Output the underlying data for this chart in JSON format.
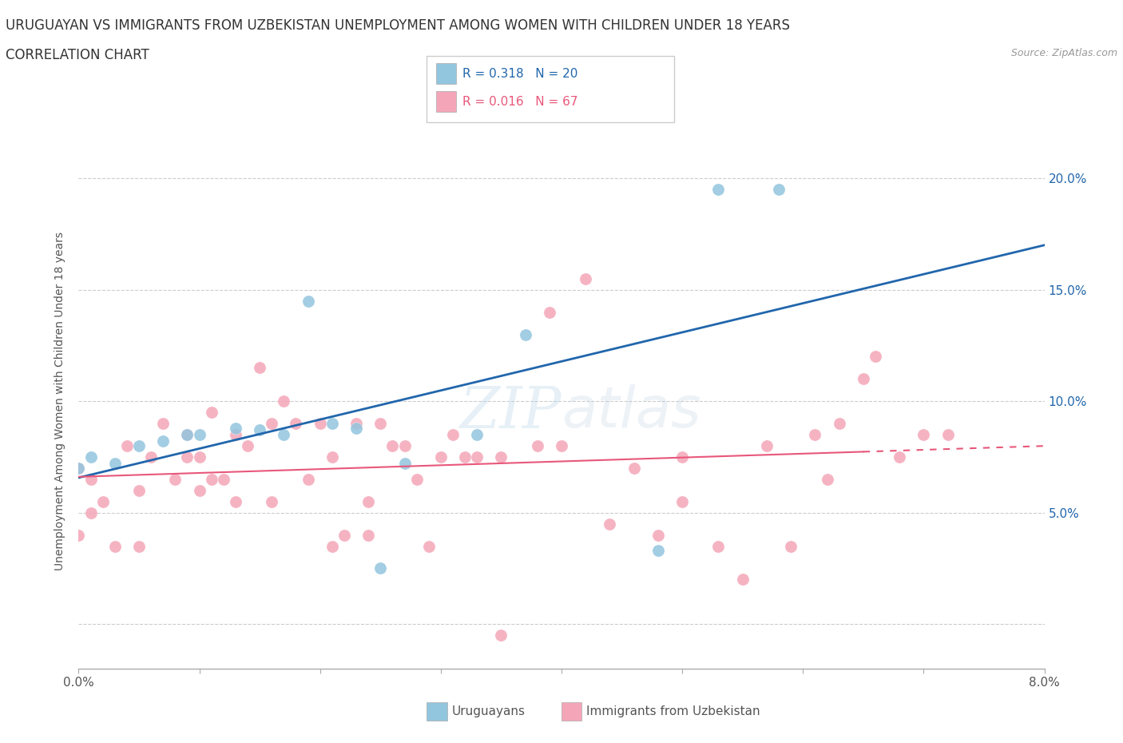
{
  "title": "URUGUAYAN VS IMMIGRANTS FROM UZBEKISTAN UNEMPLOYMENT AMONG WOMEN WITH CHILDREN UNDER 18 YEARS",
  "subtitle": "CORRELATION CHART",
  "source": "Source: ZipAtlas.com",
  "ylabel_label": "Unemployment Among Women with Children Under 18 years",
  "watermark": "ZIPatlas",
  "xmin": 0.0,
  "xmax": 0.08,
  "ymin": -0.02,
  "ymax": 0.22,
  "legend_uruguayans": "Uruguayans",
  "legend_immigrants": "Immigrants from Uzbekistan",
  "R_uruguayans": 0.318,
  "N_uruguayans": 20,
  "R_immigrants": 0.016,
  "N_immigrants": 67,
  "color_uruguayans": "#92c5de",
  "color_immigrants": "#f4a6b8",
  "color_uruguayans_line": "#2166ac",
  "color_immigrants_line": "#e8577a",
  "uruguayans_x": [
    0.0,
    0.001,
    0.003,
    0.005,
    0.007,
    0.009,
    0.01,
    0.013,
    0.015,
    0.017,
    0.019,
    0.021,
    0.023,
    0.025,
    0.027,
    0.033,
    0.037,
    0.048,
    0.053,
    0.058
  ],
  "uruguayans_y": [
    0.07,
    0.075,
    0.072,
    0.08,
    0.082,
    0.085,
    0.085,
    0.088,
    0.087,
    0.085,
    0.145,
    0.09,
    0.088,
    0.025,
    0.072,
    0.085,
    0.13,
    0.033,
    0.195,
    0.195
  ],
  "immigrants_x": [
    0.0,
    0.0,
    0.001,
    0.001,
    0.002,
    0.003,
    0.004,
    0.005,
    0.005,
    0.006,
    0.007,
    0.008,
    0.009,
    0.009,
    0.01,
    0.01,
    0.011,
    0.011,
    0.012,
    0.013,
    0.013,
    0.014,
    0.015,
    0.016,
    0.016,
    0.017,
    0.018,
    0.019,
    0.02,
    0.021,
    0.021,
    0.022,
    0.023,
    0.024,
    0.024,
    0.025,
    0.026,
    0.027,
    0.028,
    0.029,
    0.03,
    0.031,
    0.032,
    0.033,
    0.035,
    0.035,
    0.038,
    0.039,
    0.04,
    0.042,
    0.044,
    0.046,
    0.048,
    0.05,
    0.05,
    0.053,
    0.055,
    0.057,
    0.059,
    0.061,
    0.062,
    0.063,
    0.065,
    0.066,
    0.068,
    0.07,
    0.072
  ],
  "immigrants_y": [
    0.07,
    0.04,
    0.065,
    0.05,
    0.055,
    0.035,
    0.08,
    0.035,
    0.06,
    0.075,
    0.09,
    0.065,
    0.075,
    0.085,
    0.06,
    0.075,
    0.095,
    0.065,
    0.065,
    0.055,
    0.085,
    0.08,
    0.115,
    0.09,
    0.055,
    0.1,
    0.09,
    0.065,
    0.09,
    0.075,
    0.035,
    0.04,
    0.09,
    0.055,
    0.04,
    0.09,
    0.08,
    0.08,
    0.065,
    0.035,
    0.075,
    0.085,
    0.075,
    0.075,
    0.075,
    -0.005,
    0.08,
    0.14,
    0.08,
    0.155,
    0.045,
    0.07,
    0.04,
    0.075,
    0.055,
    0.035,
    0.02,
    0.08,
    0.035,
    0.085,
    0.065,
    0.09,
    0.11,
    0.12,
    0.075,
    0.085,
    0.085
  ]
}
